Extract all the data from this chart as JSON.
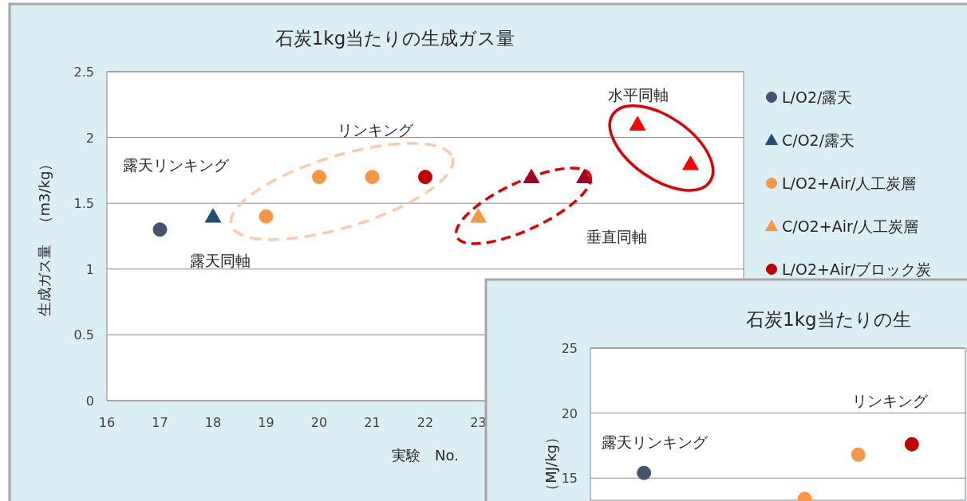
{
  "chart_data": [
    {
      "type": "scatter",
      "title": "石炭1kg当たりの生成ガス量",
      "xlabel": "実験　No.",
      "ylabel": "生成ガス量　（m3/kg）",
      "xlim": [
        16,
        28
      ],
      "ylim": [
        0,
        2.5
      ],
      "xticks": [
        16,
        17,
        18,
        19,
        20,
        21,
        22,
        23
      ],
      "yticks": [
        0,
        0.5,
        1,
        1.5,
        2,
        2.5
      ],
      "grid": "y",
      "legend": "right",
      "series": [
        {
          "name": "L/O2/露天",
          "color": "#44546a",
          "marker": "circle",
          "x": [
            17
          ],
          "values": [
            1.3
          ]
        },
        {
          "name": "C/O2/露天",
          "color": "#1f4e79",
          "marker": "triangle",
          "x": [
            18
          ],
          "values": [
            1.4
          ]
        },
        {
          "name": "L/O2+Air/人工炭層",
          "color": "#f79646",
          "marker": "circle",
          "x": [
            19,
            20,
            21
          ],
          "values": [
            1.4,
            1.7,
            1.7
          ]
        },
        {
          "name": "C/O2+Air/人工炭層",
          "color": "#f79646",
          "marker": "triangle",
          "x": [
            23
          ],
          "values": [
            1.4
          ]
        },
        {
          "name": "L/O2+Air/ブロック炭",
          "color": "#c00000",
          "marker": "circle",
          "x": [
            22
          ],
          "values": [
            1.7
          ]
        },
        {
          "color": "#a50021",
          "marker": "triangle",
          "x": [
            24,
            25
          ],
          "values": [
            1.7,
            1.7
          ]
        },
        {
          "color": "#ff0000",
          "marker": "triangle",
          "x": [
            26,
            27
          ],
          "values": [
            2.1,
            1.8
          ]
        }
      ],
      "annotations": [
        "リンキング",
        "露天リンキング",
        "露天同軸",
        "水平同軸",
        "垂直同軸"
      ]
    },
    {
      "type": "scatter",
      "title": "石炭1kg当たりの生",
      "ylabel": "（MJ/kg）",
      "categories": [
        null,
        null,
        null,
        null,
        null,
        null
      ],
      "ylim": [
        13.3,
        25
      ],
      "yticks": [
        15,
        20,
        25
      ],
      "grid": "y",
      "tick_labels": "y",
      "series": [
        {
          "color": "#44546a",
          "marker": "circle",
          "values": [
            15.4,
            null,
            null,
            null,
            null,
            null
          ]
        },
        {
          "color": "#f79646",
          "marker": "circle",
          "values": [
            null,
            null,
            null,
            13.4,
            16.8,
            null
          ]
        },
        {
          "color": "#c00000",
          "marker": "circle",
          "values": [
            null,
            null,
            null,
            null,
            null,
            17.6
          ]
        }
      ],
      "annotations": [
        "リンキング",
        "露天リンキング"
      ]
    }
  ]
}
